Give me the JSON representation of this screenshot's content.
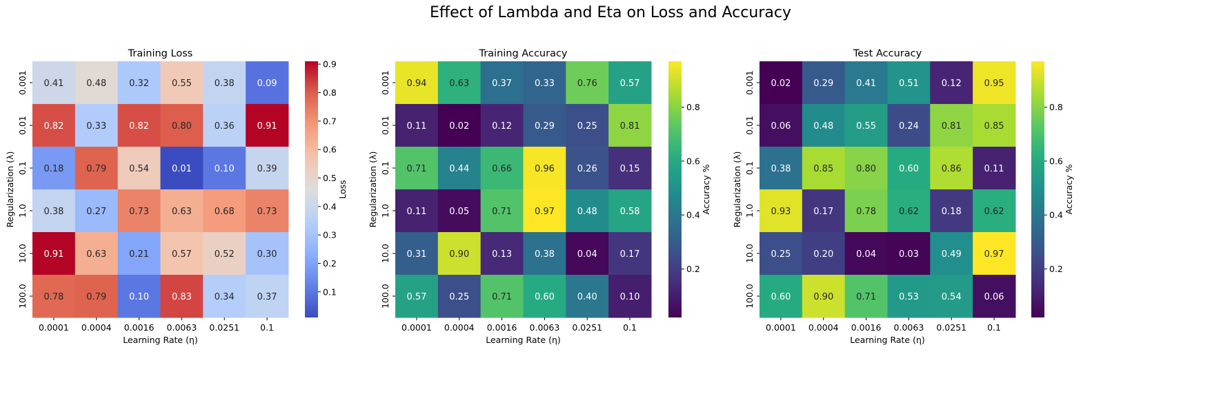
{
  "figure": {
    "title": "Effect of Lambda and Eta on Loss and Accuracy"
  },
  "chart_data": [
    {
      "type": "heatmap",
      "title": "Training Loss",
      "xlabel": "Learning Rate (η)",
      "ylabel": "Regularization (λ)",
      "x_categories": [
        "0.0001",
        "0.0004",
        "0.0016",
        "0.0063",
        "0.0251",
        "0.1"
      ],
      "y_categories": [
        "0.001",
        "0.01",
        "0.1",
        "1.0",
        "10.0",
        "100.0"
      ],
      "values": [
        [
          0.41,
          0.48,
          0.32,
          0.55,
          0.38,
          0.09
        ],
        [
          0.82,
          0.33,
          0.82,
          0.8,
          0.36,
          0.91
        ],
        [
          0.18,
          0.79,
          0.54,
          0.01,
          0.1,
          0.39
        ],
        [
          0.38,
          0.27,
          0.73,
          0.63,
          0.68,
          0.73
        ],
        [
          0.91,
          0.63,
          0.21,
          0.57,
          0.52,
          0.3
        ],
        [
          0.78,
          0.79,
          0.1,
          0.83,
          0.34,
          0.37
        ]
      ],
      "value_labels": [
        [
          "0.41",
          "0.48",
          "0.32",
          "0.55",
          "0.38",
          "0.09"
        ],
        [
          "0.82",
          "0.33",
          "0.82",
          "0.80",
          "0.36",
          "0.91"
        ],
        [
          "0.18",
          "0.79",
          "0.54",
          "0.01",
          "0.10",
          "0.39"
        ],
        [
          "0.38",
          "0.27",
          "0.73",
          "0.63",
          "0.68",
          "0.73"
        ],
        [
          "0.91",
          "0.63",
          "0.21",
          "0.57",
          "0.52",
          "0.30"
        ],
        [
          "0.78",
          "0.79",
          "0.10",
          "0.83",
          "0.34",
          "0.37"
        ]
      ],
      "colormap": "coolwarm",
      "colorbar": {
        "label": "Loss",
        "range": [
          0.01,
          0.91
        ],
        "ticks": [
          0.1,
          0.2,
          0.3,
          0.4,
          0.5,
          0.6,
          0.7,
          0.8,
          0.9
        ],
        "tick_labels": [
          "0.1",
          "0.2",
          "0.3",
          "0.4",
          "0.5",
          "0.6",
          "0.7",
          "0.8",
          "0.9"
        ]
      }
    },
    {
      "type": "heatmap",
      "title": "Training Accuracy",
      "xlabel": "Learning Rate (η)",
      "ylabel": "Regularization (λ)",
      "x_categories": [
        "0.0001",
        "0.0004",
        "0.0016",
        "0.0063",
        "0.0251",
        "0.1"
      ],
      "y_categories": [
        "0.001",
        "0.01",
        "0.1",
        "1.0",
        "10.0",
        "100.0"
      ],
      "values": [
        [
          0.94,
          0.63,
          0.37,
          0.33,
          0.76,
          0.57
        ],
        [
          0.11,
          0.02,
          0.12,
          0.29,
          0.25,
          0.81
        ],
        [
          0.71,
          0.44,
          0.66,
          0.96,
          0.26,
          0.15
        ],
        [
          0.11,
          0.05,
          0.71,
          0.97,
          0.48,
          0.58
        ],
        [
          0.31,
          0.9,
          0.13,
          0.38,
          0.04,
          0.17
        ],
        [
          0.57,
          0.25,
          0.71,
          0.6,
          0.4,
          0.1
        ]
      ],
      "value_labels": [
        [
          "0.94",
          "0.63",
          "0.37",
          "0.33",
          "0.76",
          "0.57"
        ],
        [
          "0.11",
          "0.02",
          "0.12",
          "0.29",
          "0.25",
          "0.81"
        ],
        [
          "0.71",
          "0.44",
          "0.66",
          "0.96",
          "0.26",
          "0.15"
        ],
        [
          "0.11",
          "0.05",
          "0.71",
          "0.97",
          "0.48",
          "0.58"
        ],
        [
          "0.31",
          "0.90",
          "0.13",
          "0.38",
          "0.04",
          "0.17"
        ],
        [
          "0.57",
          "0.25",
          "0.71",
          "0.60",
          "0.40",
          "0.10"
        ]
      ],
      "colormap": "viridis",
      "colorbar": {
        "label": "Accuracy %",
        "range": [
          0.02,
          0.97
        ],
        "ticks": [
          0.2,
          0.4,
          0.6,
          0.8
        ],
        "tick_labels": [
          "0.2",
          "0.4",
          "0.6",
          "0.8"
        ]
      }
    },
    {
      "type": "heatmap",
      "title": "Test Accuracy",
      "xlabel": "Learning Rate (η)",
      "ylabel": "Regularization (λ)",
      "x_categories": [
        "0.0001",
        "0.0004",
        "0.0016",
        "0.0063",
        "0.0251",
        "0.1"
      ],
      "y_categories": [
        "0.001",
        "0.01",
        "0.1",
        "1.0",
        "10.0",
        "100.0"
      ],
      "values": [
        [
          0.02,
          0.29,
          0.41,
          0.51,
          0.12,
          0.95
        ],
        [
          0.06,
          0.48,
          0.55,
          0.24,
          0.81,
          0.85
        ],
        [
          0.38,
          0.85,
          0.8,
          0.6,
          0.86,
          0.11
        ],
        [
          0.93,
          0.17,
          0.78,
          0.62,
          0.18,
          0.62
        ],
        [
          0.25,
          0.2,
          0.04,
          0.03,
          0.49,
          0.97
        ],
        [
          0.6,
          0.9,
          0.71,
          0.53,
          0.54,
          0.06
        ]
      ],
      "value_labels": [
        [
          "0.02",
          "0.29",
          "0.41",
          "0.51",
          "0.12",
          "0.95"
        ],
        [
          "0.06",
          "0.48",
          "0.55",
          "0.24",
          "0.81",
          "0.85"
        ],
        [
          "0.38",
          "0.85",
          "0.80",
          "0.60",
          "0.86",
          "0.11"
        ],
        [
          "0.93",
          "0.17",
          "0.78",
          "0.62",
          "0.18",
          "0.62"
        ],
        [
          "0.25",
          "0.20",
          "0.04",
          "0.03",
          "0.49",
          "0.97"
        ],
        [
          "0.60",
          "0.90",
          "0.71",
          "0.53",
          "0.54",
          "0.06"
        ]
      ],
      "colormap": "viridis",
      "colorbar": {
        "label": "Accuracy %",
        "range": [
          0.02,
          0.97
        ],
        "ticks": [
          0.2,
          0.4,
          0.6,
          0.8
        ],
        "tick_labels": [
          "0.2",
          "0.4",
          "0.6",
          "0.8"
        ]
      }
    }
  ]
}
